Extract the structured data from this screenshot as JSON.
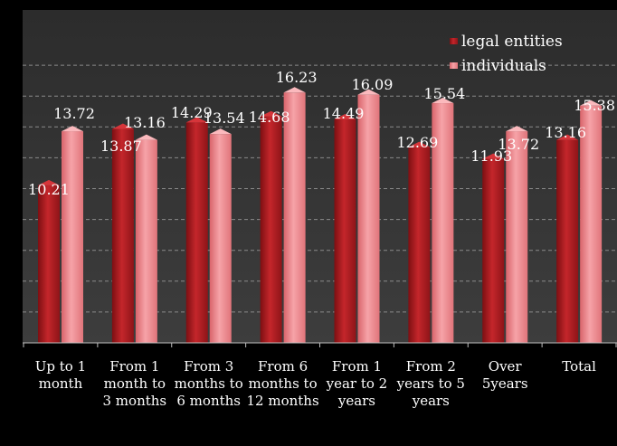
{
  "chart_data": {
    "type": "bar",
    "title": "",
    "xlabel": "",
    "ylabel": "",
    "ylim": [
      0,
      18
    ],
    "grid": true,
    "legend": "top-right",
    "categories": [
      [
        "Up to 1",
        "month"
      ],
      [
        "From 1",
        "month to",
        "3 months"
      ],
      [
        "From 3",
        "months to",
        "6 months"
      ],
      [
        "From 6",
        "months to",
        "12 months"
      ],
      [
        "From 1",
        "year to 2",
        "years"
      ],
      [
        "From 2",
        "years to 5",
        "years"
      ],
      [
        "Over",
        "5years"
      ],
      [
        "Total"
      ]
    ],
    "series": [
      {
        "name": "legal entities",
        "color": "#a3191d",
        "values": [
          10.21,
          13.87,
          14.29,
          14.68,
          14.49,
          12.69,
          11.93,
          13.16
        ],
        "labels": [
          "10.21",
          "13.87",
          "14.29",
          "14.68",
          "14.49",
          "12.69",
          "11.93",
          "13.16"
        ]
      },
      {
        "name": "individuals",
        "color": "#f08a90",
        "values": [
          13.72,
          13.16,
          13.54,
          16.23,
          16.09,
          15.54,
          13.72,
          15.38
        ],
        "labels": [
          "13.72",
          "13.16",
          "13.54",
          "16.23",
          "16.09",
          "15.54",
          "13.72",
          "15.38"
        ]
      }
    ]
  }
}
